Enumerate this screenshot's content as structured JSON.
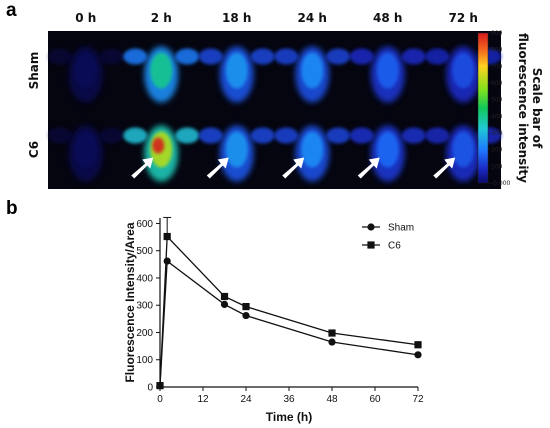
{
  "panel_a": {
    "label": "a",
    "time_points": [
      "0 h",
      "2 h",
      "18 h",
      "24 h",
      "48 h",
      "72 h"
    ],
    "rows": [
      "Sham",
      "C6"
    ],
    "intensity": {
      "Sham": [
        0.05,
        0.62,
        0.42,
        0.4,
        0.3,
        0.26
      ],
      "C6": [
        0.06,
        0.88,
        0.42,
        0.4,
        0.32,
        0.28
      ]
    },
    "arrows_row": "C6",
    "colorbar": {
      "ticks": [
        "909",
        "800",
        "700",
        "600",
        "500",
        "400",
        "300",
        "200",
        "100",
        "-0.000"
      ],
      "title_line1": "Scale bar of",
      "title_line2": "fluorescence intensity"
    }
  },
  "panel_b": {
    "label": "b"
  },
  "chart_data": {
    "type": "line",
    "xlabel": "Time (h)",
    "ylabel": "Fluorescence Intensity/Area",
    "xlim": [
      0,
      72
    ],
    "ylim": [
      0,
      620
    ],
    "x_ticks": [
      "0",
      "12",
      "24",
      "36",
      "48",
      "60",
      "72"
    ],
    "y_ticks": [
      "0",
      "100",
      "200",
      "300",
      "400",
      "500",
      "600"
    ],
    "legend_position": "top-right",
    "series": [
      {
        "name": "Sham",
        "marker": "circle",
        "x": [
          0,
          2,
          18,
          24,
          48,
          72
        ],
        "y": [
          5,
          462,
          303,
          262,
          165,
          118
        ],
        "err": [
          0,
          0,
          0,
          0,
          0,
          0
        ]
      },
      {
        "name": "C6",
        "marker": "square",
        "x": [
          0,
          2,
          18,
          24,
          48,
          72
        ],
        "y": [
          5,
          552,
          332,
          295,
          198,
          155
        ],
        "err": [
          0,
          70,
          0,
          0,
          0,
          0
        ]
      }
    ]
  }
}
